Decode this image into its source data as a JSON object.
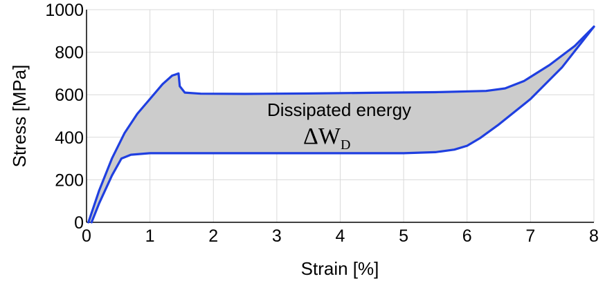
{
  "chart_data": {
    "type": "line",
    "xlabel": "Strain [%]",
    "ylabel": "Stress [MPa]",
    "xlim": [
      0,
      8
    ],
    "ylim": [
      0,
      1000
    ],
    "x_ticks": [
      0,
      1,
      2,
      3,
      4,
      5,
      6,
      7,
      8
    ],
    "y_ticks": [
      0,
      200,
      400,
      600,
      800,
      1000
    ],
    "grid": true,
    "fill_between_series": true,
    "series": [
      {
        "points": [
          [
            0.03,
            0
          ],
          [
            0.2,
            150
          ],
          [
            0.4,
            300
          ],
          [
            0.6,
            420
          ],
          [
            0.8,
            510
          ],
          [
            1.0,
            580
          ],
          [
            1.2,
            650
          ],
          [
            1.35,
            690
          ],
          [
            1.45,
            700
          ],
          [
            1.47,
            640
          ],
          [
            1.55,
            610
          ],
          [
            1.8,
            605
          ],
          [
            2.5,
            604
          ],
          [
            3.5,
            606
          ],
          [
            4.5,
            609
          ],
          [
            5.5,
            612
          ],
          [
            6.3,
            618
          ],
          [
            6.6,
            630
          ],
          [
            6.9,
            665
          ],
          [
            7.3,
            740
          ],
          [
            7.7,
            830
          ],
          [
            8.0,
            920
          ]
        ]
      },
      {
        "points": [
          [
            0.08,
            0
          ],
          [
            0.2,
            90
          ],
          [
            0.4,
            220
          ],
          [
            0.55,
            300
          ],
          [
            0.7,
            318
          ],
          [
            1.0,
            325
          ],
          [
            2.0,
            325
          ],
          [
            3.0,
            325
          ],
          [
            4.0,
            325
          ],
          [
            5.0,
            325
          ],
          [
            5.5,
            330
          ],
          [
            5.8,
            342
          ],
          [
            6.0,
            360
          ],
          [
            6.2,
            395
          ],
          [
            6.5,
            460
          ],
          [
            7.0,
            580
          ],
          [
            7.5,
            730
          ],
          [
            8.0,
            920
          ]
        ]
      }
    ],
    "annotations": {
      "label": "Dissipated energy",
      "symbol": "ΔW",
      "subscript": "D"
    }
  }
}
